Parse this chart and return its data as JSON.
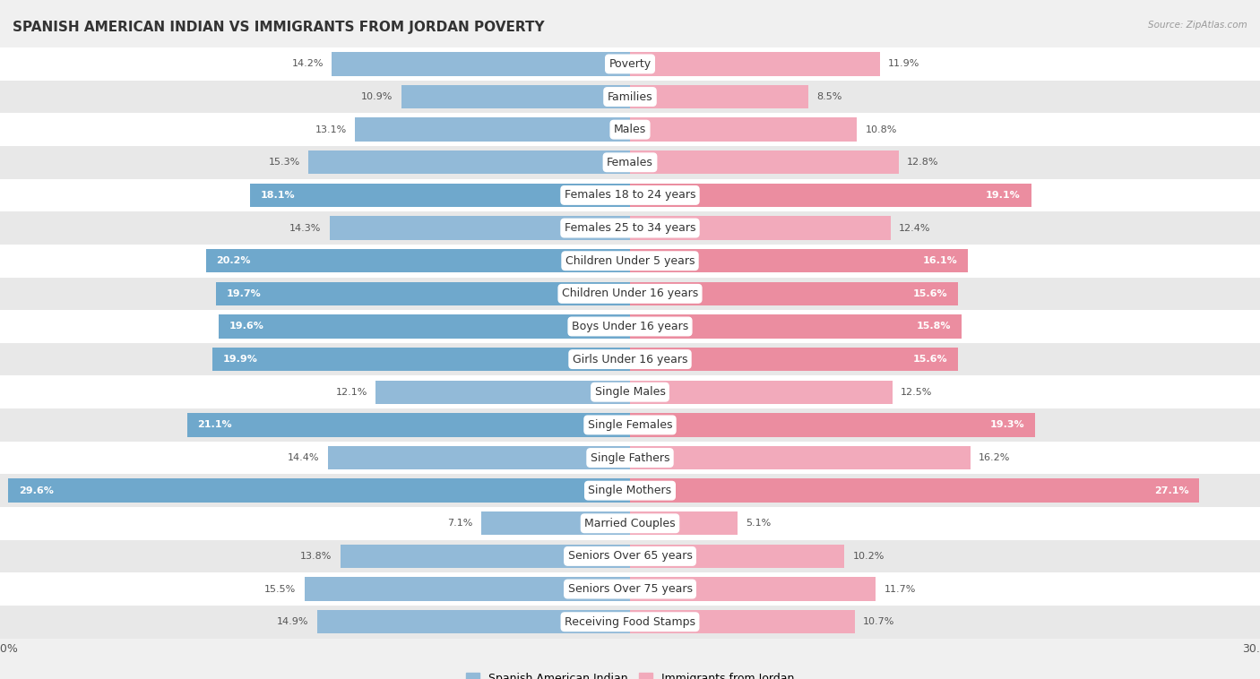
{
  "title": "SPANISH AMERICAN INDIAN VS IMMIGRANTS FROM JORDAN POVERTY",
  "source": "Source: ZipAtlas.com",
  "categories": [
    "Poverty",
    "Families",
    "Males",
    "Females",
    "Females 18 to 24 years",
    "Females 25 to 34 years",
    "Children Under 5 years",
    "Children Under 16 years",
    "Boys Under 16 years",
    "Girls Under 16 years",
    "Single Males",
    "Single Females",
    "Single Fathers",
    "Single Mothers",
    "Married Couples",
    "Seniors Over 65 years",
    "Seniors Over 75 years",
    "Receiving Food Stamps"
  ],
  "left_values": [
    14.2,
    10.9,
    13.1,
    15.3,
    18.1,
    14.3,
    20.2,
    19.7,
    19.6,
    19.9,
    12.1,
    21.1,
    14.4,
    29.6,
    7.1,
    13.8,
    15.5,
    14.9
  ],
  "right_values": [
    11.9,
    8.5,
    10.8,
    12.8,
    19.1,
    12.4,
    16.1,
    15.6,
    15.8,
    15.6,
    12.5,
    19.3,
    16.2,
    27.1,
    5.1,
    10.2,
    11.7,
    10.7
  ],
  "left_color_normal": "#92BAD8",
  "right_color_normal": "#F2AABB",
  "left_color_highlight": "#6FA8CC",
  "right_color_highlight": "#EB8DA0",
  "highlight_rows": [
    4,
    6,
    7,
    8,
    9,
    11,
    13
  ],
  "left_label": "Spanish American Indian",
  "right_label": "Immigrants from Jordan",
  "bg_color": "#f0f0f0",
  "row_light": "#ffffff",
  "row_dark": "#e8e8e8",
  "axis_max": 30.0,
  "title_fontsize": 11,
  "cat_fontsize": 9,
  "val_fontsize": 8
}
